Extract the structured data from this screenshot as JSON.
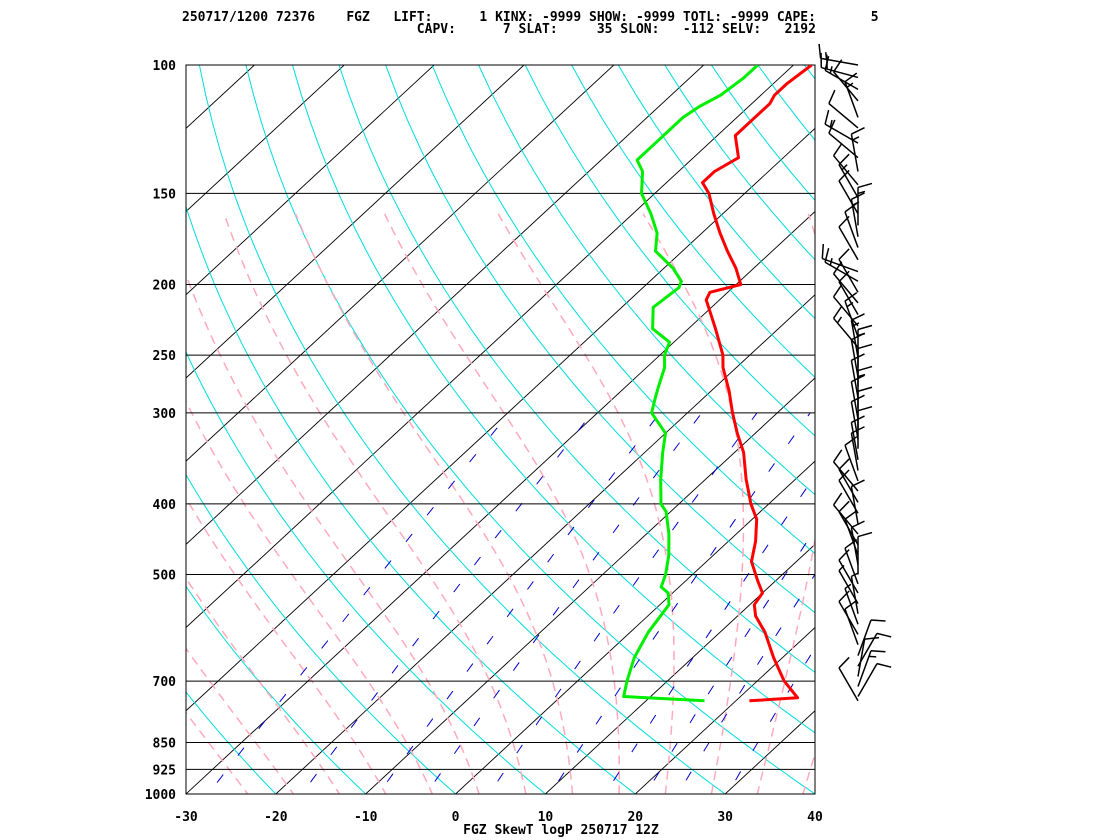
{
  "header": {
    "line1": "250717/1200 72376    FGZ   LIFT:      1 KINX: -9999 SHOW: -9999 TOTL: -9999 CAPE:       5",
    "line2": "                              CAPV:      7 SLAT:     35 SLON:   -112 SELV:   2192"
  },
  "chart_data": {
    "type": "line",
    "title": "FGZ SkewT logP 250717 12Z",
    "station": "FGZ",
    "station_id": "72376",
    "date_time": "250717/1200",
    "indices": {
      "LIFT": 1,
      "KINX": -9999,
      "SHOW": -9999,
      "TOTL": -9999,
      "CAPE": 5,
      "CAPV": 7,
      "SLAT": 35,
      "SLON": -112,
      "SELV": 2192
    },
    "x_ticks": [
      -30,
      -20,
      -10,
      0,
      10,
      20,
      30,
      40
    ],
    "y_ticks": [
      100,
      150,
      200,
      250,
      300,
      400,
      500,
      700,
      850,
      925,
      1000
    ],
    "xlim": [
      -30,
      40
    ],
    "ylim": [
      1000,
      100
    ],
    "y_scale": "log",
    "colors": {
      "temperature": "#ff0000",
      "dewpoint": "#00ee00",
      "isobars": "#000000",
      "isotherms": "#000000",
      "dry_adiabats": "#00dddd",
      "moist_adiabats": "#ffaabb",
      "mixing_ratio": "#0000cc",
      "wind_barbs": "#000000"
    },
    "series": [
      {
        "key": "temperature",
        "points": [
          {
            "p": 745,
            "t": 21.5
          },
          {
            "p": 738,
            "t": 26.5
          },
          {
            "p": 700,
            "t": 23.0
          },
          {
            "p": 650,
            "t": 19.0
          },
          {
            "p": 600,
            "t": 15.0
          },
          {
            "p": 570,
            "t": 12.0
          },
          {
            "p": 550,
            "t": 10.5
          },
          {
            "p": 530,
            "t": 10.0
          },
          {
            "p": 510,
            "t": 8.0
          },
          {
            "p": 480,
            "t": 5.0
          },
          {
            "p": 450,
            "t": 3.0
          },
          {
            "p": 420,
            "t": 0.5
          },
          {
            "p": 400,
            "t": -2.0
          },
          {
            "p": 370,
            "t": -5.5
          },
          {
            "p": 340,
            "t": -9.0
          },
          {
            "p": 320,
            "t": -12.0
          },
          {
            "p": 300,
            "t": -15.0
          },
          {
            "p": 280,
            "t": -18.0
          },
          {
            "p": 260,
            "t": -21.5
          },
          {
            "p": 250,
            "t": -23.0
          },
          {
            "p": 230,
            "t": -27.0
          },
          {
            "p": 210,
            "t": -31.5
          },
          {
            "p": 205,
            "t": -32.0
          },
          {
            "p": 200,
            "t": -29.5
          },
          {
            "p": 190,
            "t": -32.0
          },
          {
            "p": 180,
            "t": -35.0
          },
          {
            "p": 170,
            "t": -38.0
          },
          {
            "p": 160,
            "t": -41.0
          },
          {
            "p": 150,
            "t": -44.0
          },
          {
            "p": 145,
            "t": -46.0
          },
          {
            "p": 140,
            "t": -46.0
          },
          {
            "p": 134,
            "t": -45.0
          },
          {
            "p": 125,
            "t": -48.0
          },
          {
            "p": 120,
            "t": -48.0
          },
          {
            "p": 113,
            "t": -48.0
          },
          {
            "p": 110,
            "t": -48.5
          },
          {
            "p": 106,
            "t": -48.5
          },
          {
            "p": 100,
            "t": -48.0
          }
        ]
      },
      {
        "key": "dewpoint",
        "points": [
          {
            "p": 745,
            "t": 16.5
          },
          {
            "p": 735,
            "t": 7.0
          },
          {
            "p": 700,
            "t": 5.5
          },
          {
            "p": 650,
            "t": 3.5
          },
          {
            "p": 600,
            "t": 2.0
          },
          {
            "p": 550,
            "t": 1.0
          },
          {
            "p": 530,
            "t": -0.5
          },
          {
            "p": 520,
            "t": -2.0
          },
          {
            "p": 500,
            "t": -3.0
          },
          {
            "p": 470,
            "t": -5.0
          },
          {
            "p": 440,
            "t": -7.5
          },
          {
            "p": 410,
            "t": -10.5
          },
          {
            "p": 400,
            "t": -12.0
          },
          {
            "p": 370,
            "t": -15.0
          },
          {
            "p": 340,
            "t": -18.0
          },
          {
            "p": 320,
            "t": -20.0
          },
          {
            "p": 300,
            "t": -24.0
          },
          {
            "p": 285,
            "t": -25.5
          },
          {
            "p": 275,
            "t": -26.5
          },
          {
            "p": 260,
            "t": -28.0
          },
          {
            "p": 250,
            "t": -29.5
          },
          {
            "p": 240,
            "t": -30.5
          },
          {
            "p": 230,
            "t": -34.0
          },
          {
            "p": 215,
            "t": -36.5
          },
          {
            "p": 202,
            "t": -36.0
          },
          {
            "p": 198,
            "t": -36.5
          },
          {
            "p": 190,
            "t": -39.0
          },
          {
            "p": 180,
            "t": -43.0
          },
          {
            "p": 170,
            "t": -45.0
          },
          {
            "p": 160,
            "t": -48.0
          },
          {
            "p": 150,
            "t": -51.5
          },
          {
            "p": 140,
            "t": -54.0
          },
          {
            "p": 135,
            "t": -56.0
          },
          {
            "p": 128,
            "t": -56.0
          },
          {
            "p": 125,
            "t": -56.0
          },
          {
            "p": 118,
            "t": -56.0
          },
          {
            "p": 114,
            "t": -55.5
          },
          {
            "p": 110,
            "t": -54.5
          },
          {
            "p": 104,
            "t": -54.0
          },
          {
            "p": 100,
            "t": -54.0
          }
        ]
      }
    ],
    "wind_barbs": [
      {
        "p": 100,
        "dir": 280,
        "spd": 15
      },
      {
        "p": 104,
        "dir": 285,
        "spd": 20
      },
      {
        "p": 108,
        "dir": 300,
        "spd": 15
      },
      {
        "p": 112,
        "dir": 320,
        "spd": 10
      },
      {
        "p": 118,
        "dir": 340,
        "spd": 15
      },
      {
        "p": 122,
        "dir": 310,
        "spd": 10
      },
      {
        "p": 128,
        "dir": 300,
        "spd": 15
      },
      {
        "p": 134,
        "dir": 310,
        "spd": 10
      },
      {
        "p": 140,
        "dir": 350,
        "spd": 15
      },
      {
        "p": 146,
        "dir": 320,
        "spd": 10
      },
      {
        "p": 152,
        "dir": 330,
        "spd": 15
      },
      {
        "p": 160,
        "dir": 330,
        "spd": 10
      },
      {
        "p": 166,
        "dir": 0,
        "spd": 15
      },
      {
        "p": 172,
        "dir": 350,
        "spd": 15
      },
      {
        "p": 178,
        "dir": 340,
        "spd": 10
      },
      {
        "p": 185,
        "dir": 330,
        "spd": 10
      },
      {
        "p": 192,
        "dir": 290,
        "spd": 10
      },
      {
        "p": 198,
        "dir": 300,
        "spd": 15
      },
      {
        "p": 205,
        "dir": 330,
        "spd": 10
      },
      {
        "p": 212,
        "dir": 320,
        "spd": 10
      },
      {
        "p": 220,
        "dir": 330,
        "spd": 10
      },
      {
        "p": 228,
        "dir": 320,
        "spd": 10
      },
      {
        "p": 236,
        "dir": 340,
        "spd": 15
      },
      {
        "p": 244,
        "dir": 320,
        "spd": 15
      },
      {
        "p": 252,
        "dir": 350,
        "spd": 15
      },
      {
        "p": 260,
        "dir": 0,
        "spd": 15
      },
      {
        "p": 268,
        "dir": 350,
        "spd": 10
      },
      {
        "p": 276,
        "dir": 0,
        "spd": 10
      },
      {
        "p": 286,
        "dir": 350,
        "spd": 10
      },
      {
        "p": 296,
        "dir": 0,
        "spd": 15
      },
      {
        "p": 306,
        "dir": 350,
        "spd": 10
      },
      {
        "p": 316,
        "dir": 0,
        "spd": 10
      },
      {
        "p": 326,
        "dir": 350,
        "spd": 10
      },
      {
        "p": 336,
        "dir": 0,
        "spd": 10
      },
      {
        "p": 348,
        "dir": 350,
        "spd": 10
      },
      {
        "p": 360,
        "dir": 350,
        "spd": 10
      },
      {
        "p": 372,
        "dir": 340,
        "spd": 10
      },
      {
        "p": 384,
        "dir": 320,
        "spd": 10
      },
      {
        "p": 398,
        "dir": 330,
        "spd": 10
      },
      {
        "p": 412,
        "dir": 330,
        "spd": 10
      },
      {
        "p": 426,
        "dir": 350,
        "spd": 10
      },
      {
        "p": 440,
        "dir": 320,
        "spd": 10
      },
      {
        "p": 455,
        "dir": 330,
        "spd": 10
      },
      {
        "p": 470,
        "dir": 340,
        "spd": 10
      },
      {
        "p": 485,
        "dir": 350,
        "spd": 10
      },
      {
        "p": 500,
        "dir": 0,
        "spd": 10
      },
      {
        "p": 515,
        "dir": 340,
        "spd": 10
      },
      {
        "p": 530,
        "dir": 330,
        "spd": 10
      },
      {
        "p": 548,
        "dir": 330,
        "spd": 5
      },
      {
        "p": 566,
        "dir": 350,
        "spd": 5
      },
      {
        "p": 585,
        "dir": 340,
        "spd": 5
      },
      {
        "p": 604,
        "dir": 330,
        "spd": 10
      },
      {
        "p": 624,
        "dir": 340,
        "spd": 10
      },
      {
        "p": 646,
        "dir": 20,
        "spd": 10
      },
      {
        "p": 668,
        "dir": 30,
        "spd": 10
      },
      {
        "p": 690,
        "dir": 10,
        "spd": 10
      },
      {
        "p": 712,
        "dir": 20,
        "spd": 15
      },
      {
        "p": 735,
        "dir": 30,
        "spd": 10
      },
      {
        "p": 745,
        "dir": 330,
        "spd": 10
      }
    ]
  }
}
